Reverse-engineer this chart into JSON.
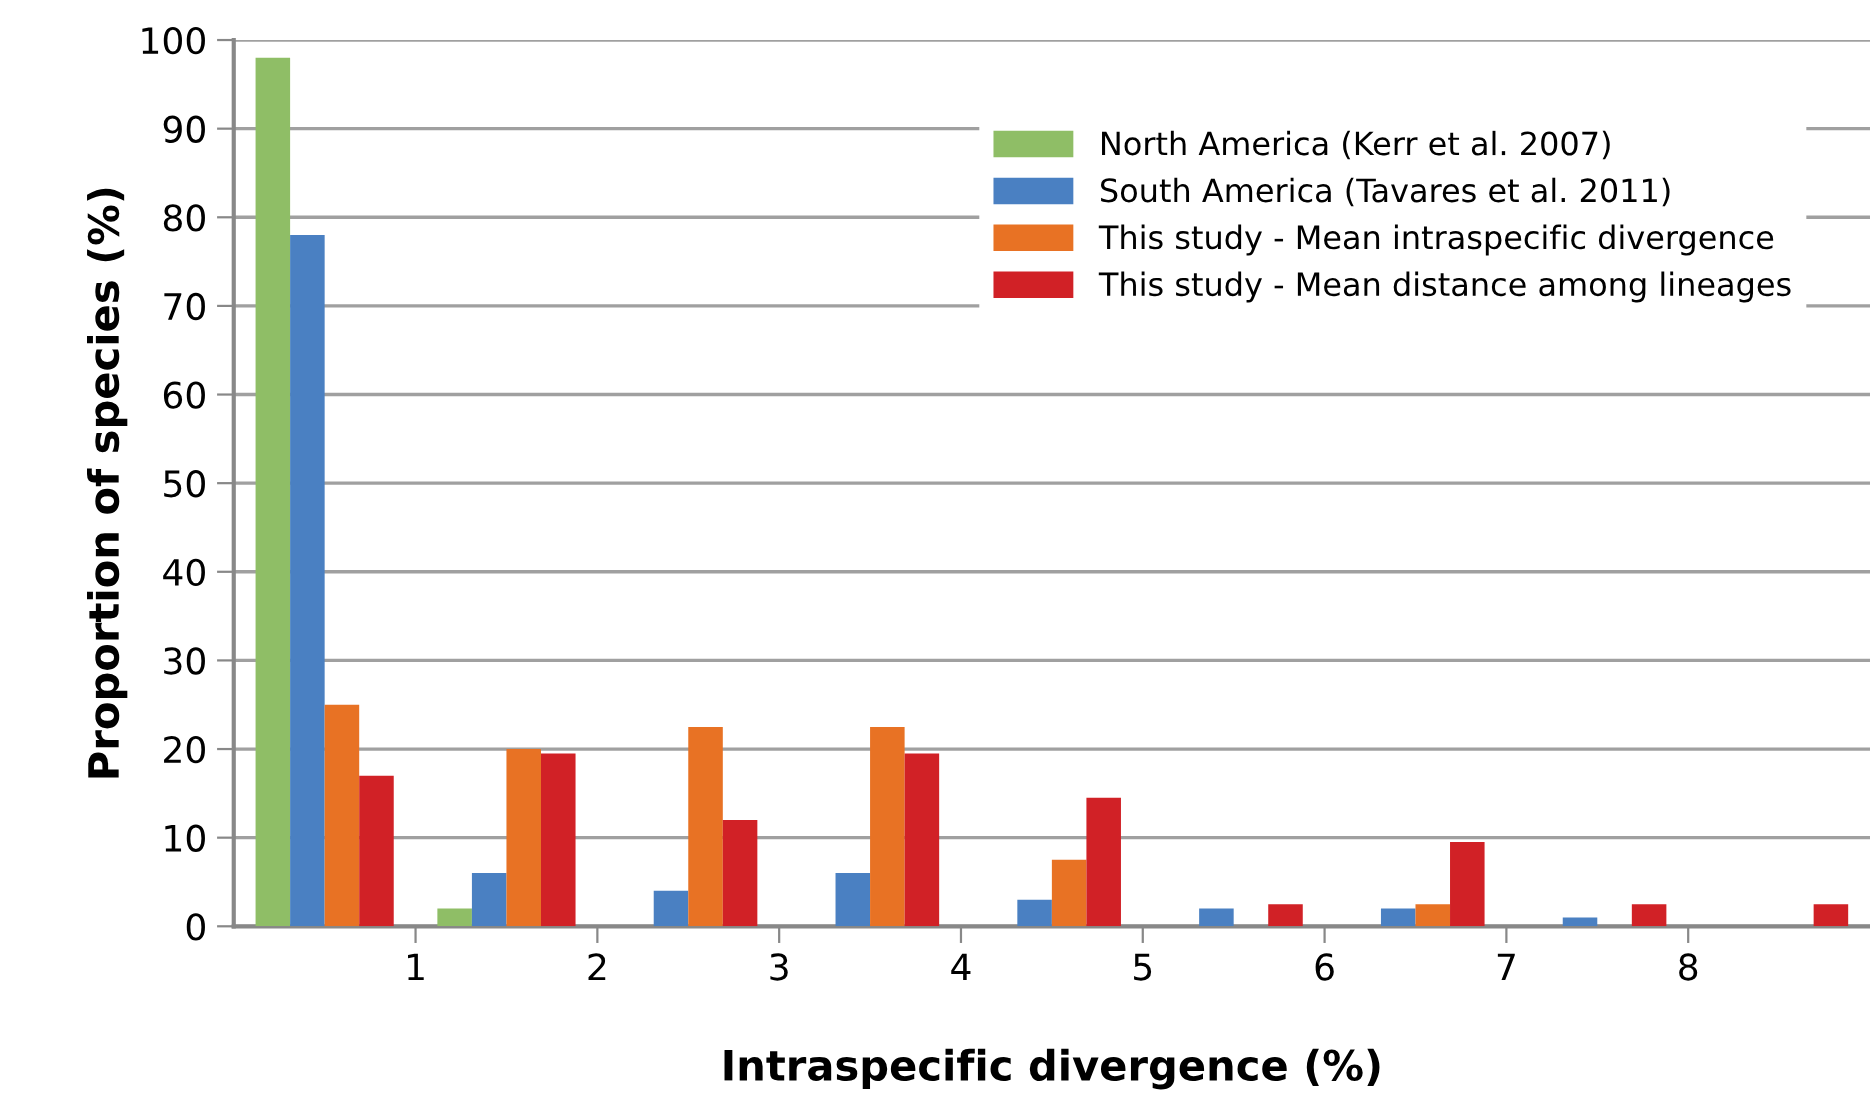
{
  "chart_data": {
    "type": "bar",
    "xlabel": "Intraspecific divergence (%)",
    "ylabel": "Proportion of species (%)",
    "x": [
      0.5,
      1.5,
      2.5,
      3.5,
      4.5,
      5.5,
      6.5,
      7.5,
      8.5
    ],
    "series": [
      {
        "name": "North America (Kerr et al. 2007)",
        "color": "#8fbe66",
        "values": [
          98,
          2,
          0,
          0,
          0,
          0,
          0,
          0,
          0
        ]
      },
      {
        "name": "South America (Tavares et al. 2011)",
        "color": "#4a80c2",
        "values": [
          78,
          6,
          4,
          6,
          3,
          2,
          2,
          1,
          0
        ]
      },
      {
        "name": "This study - Mean intraspecific divergence",
        "color": "#e87224",
        "values": [
          25,
          20,
          22.5,
          22.5,
          7.5,
          0,
          2.5,
          0,
          0
        ]
      },
      {
        "name": "This study - Mean distance among lineages",
        "color": "#d12126",
        "values": [
          17,
          19.5,
          12,
          19.5,
          14.5,
          2.5,
          9.5,
          2.5,
          2.5
        ]
      }
    ],
    "xlim": [
      0,
      9
    ],
    "xticks": [
      1,
      2,
      3,
      4,
      5,
      6,
      7,
      8
    ],
    "ylim": [
      0,
      100
    ],
    "yticks": [
      0,
      10,
      20,
      30,
      40,
      50,
      60,
      70,
      80,
      90,
      100
    ],
    "grid": "y",
    "legend": "top right"
  }
}
